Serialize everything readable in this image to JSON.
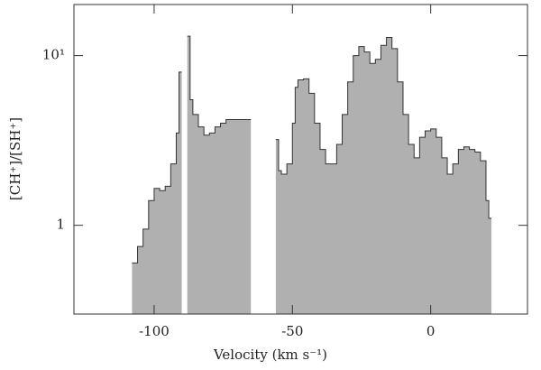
{
  "chart_data": {
    "type": "step-area",
    "xlabel": "Velocity (km s⁻¹)",
    "ylabel": "[CH⁺]/[SH⁺]",
    "x": [
      -108,
      -106,
      -104,
      -102,
      -100,
      -98,
      -96,
      -94,
      -92,
      -91,
      null,
      -88,
      -87,
      -86,
      -84,
      -82,
      -80,
      -78,
      -76,
      -74,
      -72,
      -66,
      null,
      -56,
      -55,
      -54,
      -52,
      -50,
      -49,
      -48,
      -46,
      -44,
      -42,
      -40,
      -38,
      -36,
      -34,
      -32,
      -30,
      -28,
      -26,
      -24,
      -22,
      -20,
      -18,
      -16,
      -14,
      -12,
      -10,
      -8,
      -6,
      -4,
      -2,
      0,
      2,
      4,
      6,
      8,
      10,
      12,
      14,
      16,
      18,
      20,
      21
    ],
    "series": [
      {
        "color": "#b0b0b0",
        "values": [
          0.6,
          0.75,
          0.95,
          1.4,
          1.65,
          1.6,
          1.7,
          2.3,
          3.5,
          8,
          null,
          13,
          5.5,
          4.5,
          3.8,
          3.4,
          3.5,
          3.8,
          4.0,
          4.2,
          4.2,
          4.2,
          null,
          3.2,
          2.1,
          2.0,
          2.3,
          4,
          6.5,
          7.2,
          7.3,
          6.0,
          4.0,
          2.8,
          2.3,
          2.3,
          3.0,
          4.5,
          7.0,
          10,
          11.3,
          10.5,
          9.0,
          9.5,
          11.5,
          12.8,
          11,
          7,
          4.5,
          3.0,
          2.5,
          3.3,
          3.6,
          3.7,
          3.3,
          2.5,
          2.0,
          2.3,
          2.8,
          2.9,
          2.8,
          2.7,
          2.4,
          1.4,
          1.1
        ]
      }
    ],
    "xlim": [
      -129,
      35
    ],
    "xticks": [
      -100,
      -50,
      0
    ],
    "ylim": [
      0.3,
      20
    ],
    "yticks": [
      1,
      {
        "value": 10,
        "label": "10¹"
      }
    ],
    "log_y": true
  }
}
